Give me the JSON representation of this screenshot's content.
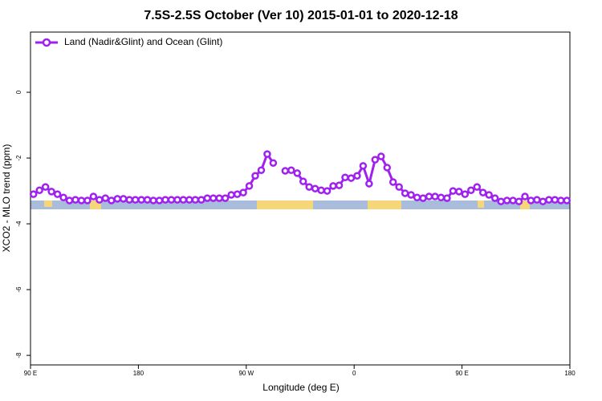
{
  "chart_data": {
    "type": "line",
    "title": "7.5S-2.5S October (Ver 10)   2015-01-01 to 2020-12-18",
    "x_label": "Longitude (deg E)",
    "y_label": "XCO2 - MLO trend (ppm)",
    "x": [
      92.5,
      97.5,
      102.5,
      107.5,
      112.5,
      117.5,
      122.5,
      127.5,
      132.5,
      137.5,
      142.5,
      147.5,
      152.5,
      157.5,
      162.5,
      167.5,
      172.5,
      177.5,
      182.5,
      187.5,
      192.5,
      197.5,
      202.5,
      207.5,
      212.5,
      217.5,
      222.5,
      227.5,
      232.5,
      237.5,
      242.5,
      247.5,
      252.5,
      257.5,
      262.5,
      267.5,
      272.5,
      277.5,
      282.5,
      287.5,
      292.5,
      297.5,
      302.5,
      307.5,
      312.5,
      317.5,
      322.5,
      327.5,
      332.5,
      337.5,
      342.5,
      347.5,
      352.5,
      357.5,
      362.5,
      367.5,
      372.5,
      377.5,
      382.5,
      387.5,
      392.5,
      397.5,
      402.5,
      407.5,
      412.5,
      417.5,
      422.5,
      427.5,
      432.5,
      437.5,
      442.5,
      447.5,
      452.5,
      457.5,
      462.5,
      467.5,
      472.5,
      477.5,
      482.5,
      487.5,
      492.5,
      497.5,
      502.5,
      507.5,
      512.5,
      517.5,
      522.5,
      527.5,
      532.5,
      537.5
    ],
    "series": [
      {
        "name": "Land (Nadir&Glint) and Ocean (Glint)",
        "color": "#a020f0",
        "values": [
          -3.1,
          -2.98,
          -2.88,
          -3.02,
          -3.1,
          -3.2,
          -3.29,
          -3.27,
          -3.29,
          -3.29,
          -3.17,
          -3.27,
          -3.22,
          -3.29,
          -3.24,
          -3.24,
          -3.27,
          -3.27,
          -3.27,
          -3.27,
          -3.29,
          -3.29,
          -3.27,
          -3.27,
          -3.27,
          -3.27,
          -3.27,
          -3.27,
          -3.27,
          -3.22,
          -3.22,
          -3.22,
          -3.22,
          -3.12,
          -3.1,
          -3.05,
          -2.85,
          -2.54,
          -2.37,
          -1.88,
          -2.15,
          null,
          -2.39,
          -2.37,
          -2.46,
          -2.71,
          -2.88,
          -2.93,
          -2.98,
          -3.0,
          -2.85,
          -2.83,
          -2.59,
          -2.61,
          -2.54,
          -2.24,
          -2.78,
          -2.05,
          -1.95,
          -2.29,
          -2.73,
          -2.88,
          -3.07,
          -3.12,
          -3.2,
          -3.22,
          -3.17,
          -3.17,
          -3.2,
          -3.22,
          -3.0,
          -3.02,
          -3.1,
          -2.98,
          -2.88,
          -3.05,
          -3.12,
          -3.22,
          -3.32,
          -3.29,
          -3.29,
          -3.32,
          -3.17,
          -3.29,
          -3.27,
          -3.32,
          -3.27,
          -3.27,
          -3.29,
          -3.29
        ]
      }
    ],
    "xlim": [
      90,
      540
    ],
    "xticks": [
      {
        "value": 90,
        "label": "90 E"
      },
      180,
      {
        "value": 270,
        "label": "90 W"
      },
      {
        "value": 360,
        "label": "0"
      },
      {
        "value": 450,
        "label": "90 E"
      },
      {
        "value": 540,
        "label": "180"
      }
    ],
    "ylim": [
      -8.29,
      1.83
    ],
    "yticks": [
      0,
      -2,
      -4,
      -6,
      -8
    ],
    "legend": "top-left"
  }
}
